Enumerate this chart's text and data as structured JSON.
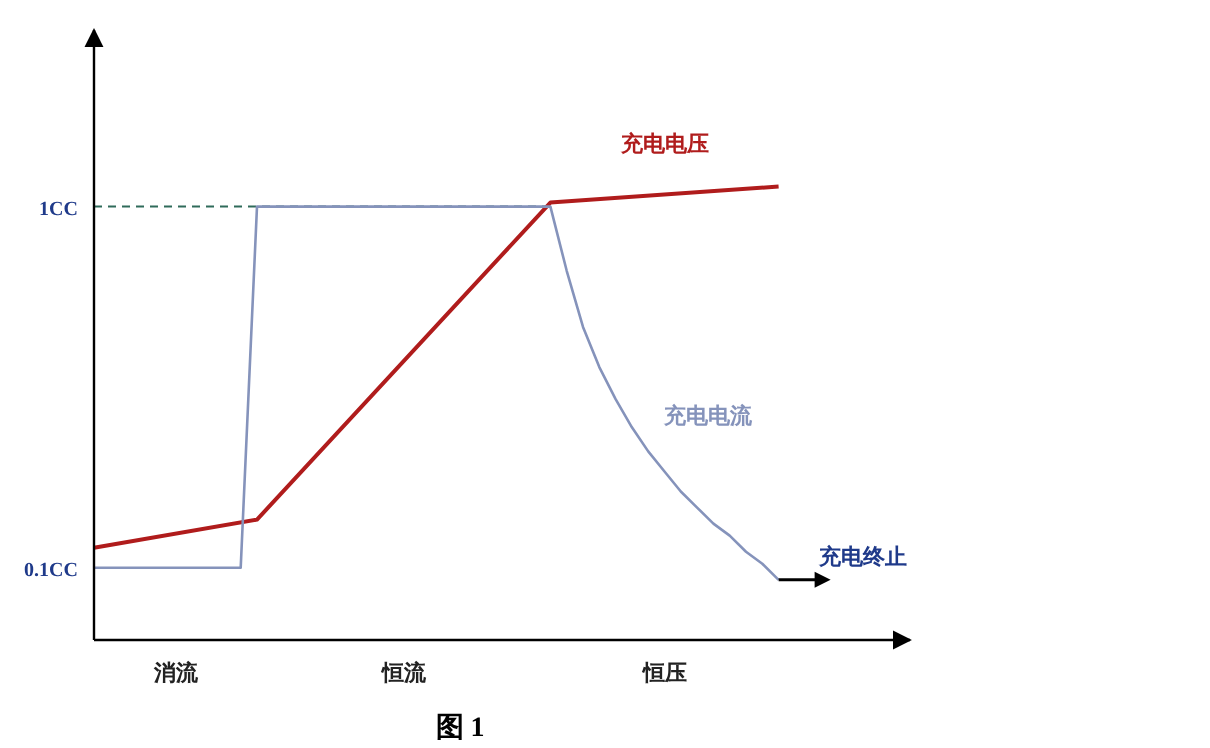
{
  "chart_data": {
    "type": "line",
    "ylim": [
      -0.08,
      1.44
    ],
    "categories": [
      null,
      null,
      null,
      null,
      null,
      "消流",
      null,
      null,
      null,
      null,
      null,
      null,
      null,
      null,
      null,
      null,
      null,
      null,
      null,
      "恒流",
      null,
      null,
      null,
      null,
      null,
      null,
      null,
      null,
      null,
      null,
      null,
      null,
      null,
      null,
      null,
      "恒压",
      null,
      null,
      null,
      null,
      null,
      null,
      null,
      null,
      null,
      null,
      null,
      null,
      null,
      null,
      null
    ],
    "yticks": [
      {
        "value": 0.1,
        "label": "0.1CC"
      },
      {
        "value": 1,
        "label": "1CC"
      }
    ],
    "grid": false,
    "legend": false,
    "marker": "none",
    "line_style": "solid",
    "series": [
      {
        "name": "充电电压",
        "color": "#b01c1c",
        "values": [
          0.15,
          null,
          null,
          null,
          null,
          null,
          null,
          null,
          null,
          null,
          0.22,
          null,
          null,
          null,
          null,
          null,
          null,
          null,
          null,
          null,
          null,
          null,
          null,
          null,
          null,
          null,
          null,
          null,
          1.01,
          null,
          null,
          null,
          null,
          null,
          null,
          null,
          null,
          null,
          null,
          null,
          null,
          null,
          1.05,
          null,
          null,
          null,
          null,
          null,
          null,
          null,
          null
        ]
      },
      {
        "name": "充电电流",
        "color": "#8593bb",
        "values": [
          0.1,
          null,
          null,
          null,
          null,
          null,
          null,
          null,
          null,
          0.1,
          1,
          null,
          null,
          null,
          null,
          null,
          null,
          null,
          null,
          null,
          null,
          null,
          null,
          null,
          null,
          null,
          null,
          null,
          1,
          0.84,
          0.7,
          0.6,
          0.52,
          0.45,
          0.39,
          0.34,
          0.29,
          0.25,
          0.21,
          0.18,
          0.14,
          0.11,
          0.07,
          null,
          null,
          null,
          null,
          null,
          null,
          null,
          null
        ]
      }
    ],
    "ref_lines": [
      {
        "axis": "y",
        "value": 1
      }
    ],
    "annotations": [
      "充电终止",
      "图 1"
    ]
  }
}
